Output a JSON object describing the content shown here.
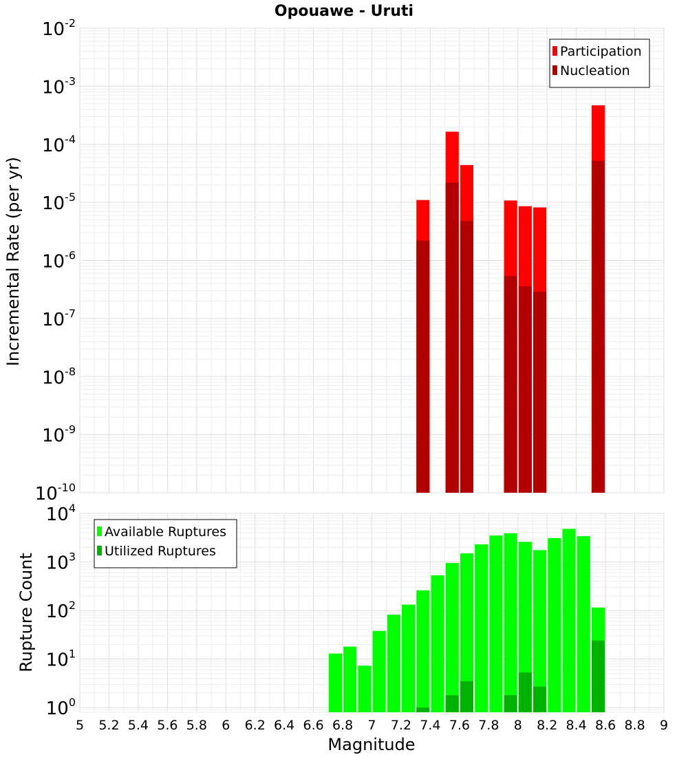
{
  "title": "Opouawe - Uruti",
  "chart_data": [
    {
      "type": "bar",
      "name": "incremental-rate",
      "ylabel": "Incremental Rate (per yr)",
      "xlabel": "",
      "xlim": [
        5,
        9
      ],
      "ylim": [
        1e-10,
        0.01
      ],
      "yscale": "log",
      "bar_width": 0.09,
      "grid": true,
      "legend": "top-right",
      "y_tick_exponents": [
        "-10",
        "-9",
        "-8",
        "-7",
        "-6",
        "-5",
        "-4",
        "-3",
        "-2"
      ],
      "series": [
        {
          "name": "Participation",
          "color": "#ff0000",
          "points": [
            [
              7.35,
              1.1e-05
            ],
            [
              7.55,
              0.000165
            ],
            [
              7.65,
              4.4e-05
            ],
            [
              7.95,
              1.08e-05
            ],
            [
              8.05,
              8.6e-06
            ],
            [
              8.15,
              8.2e-06
            ],
            [
              8.55,
              0.00047
            ]
          ]
        },
        {
          "name": "Nucleation",
          "color": "#b20000",
          "points": [
            [
              7.35,
              2.2e-06
            ],
            [
              7.55,
              2.2e-05
            ],
            [
              7.65,
              4.8e-06
            ],
            [
              7.95,
              5.4e-07
            ],
            [
              8.05,
              3.6e-07
            ],
            [
              8.15,
              2.9e-07
            ],
            [
              8.55,
              5.2e-05
            ]
          ]
        }
      ]
    },
    {
      "type": "bar",
      "name": "rupture-count",
      "ylabel": "Rupture Count",
      "xlabel": "Magnitude",
      "xlim": [
        5,
        9
      ],
      "ylim": [
        0.8,
        10000.0
      ],
      "yscale": "log",
      "bar_width": 0.09,
      "grid": true,
      "legend": "top-left",
      "x_ticks": [
        "5",
        "5.2",
        "5.4",
        "5.6",
        "5.8",
        "6",
        "6.2",
        "6.4",
        "6.6",
        "6.8",
        "7",
        "7.2",
        "7.4",
        "7.6",
        "7.8",
        "8",
        "8.2",
        "8.4",
        "8.6",
        "8.8",
        "9"
      ],
      "y_tick_exponents": [
        "0",
        "1",
        "2",
        "3",
        "4"
      ],
      "series": [
        {
          "name": "Available Ruptures",
          "color": "#00ff00",
          "points": [
            [
              6.75,
              13
            ],
            [
              6.85,
              18
            ],
            [
              6.95,
              7.3
            ],
            [
              7.05,
              38
            ],
            [
              7.15,
              82
            ],
            [
              7.25,
              132
            ],
            [
              7.35,
              260
            ],
            [
              7.45,
              530
            ],
            [
              7.55,
              950
            ],
            [
              7.65,
              1500
            ],
            [
              7.75,
              2300
            ],
            [
              7.85,
              3500
            ],
            [
              7.95,
              3900
            ],
            [
              8.05,
              2600
            ],
            [
              8.15,
              1750
            ],
            [
              8.25,
              3100
            ],
            [
              8.35,
              4800
            ],
            [
              8.45,
              3400
            ],
            [
              8.55,
              115
            ]
          ]
        },
        {
          "name": "Utilized Ruptures",
          "color": "#00b200",
          "points": [
            [
              7.35,
              1
            ],
            [
              7.55,
              1.8
            ],
            [
              7.65,
              3.5
            ],
            [
              7.95,
              1.8
            ],
            [
              8.05,
              5.3
            ],
            [
              8.15,
              2.7
            ],
            [
              8.55,
              24
            ]
          ]
        }
      ]
    }
  ]
}
